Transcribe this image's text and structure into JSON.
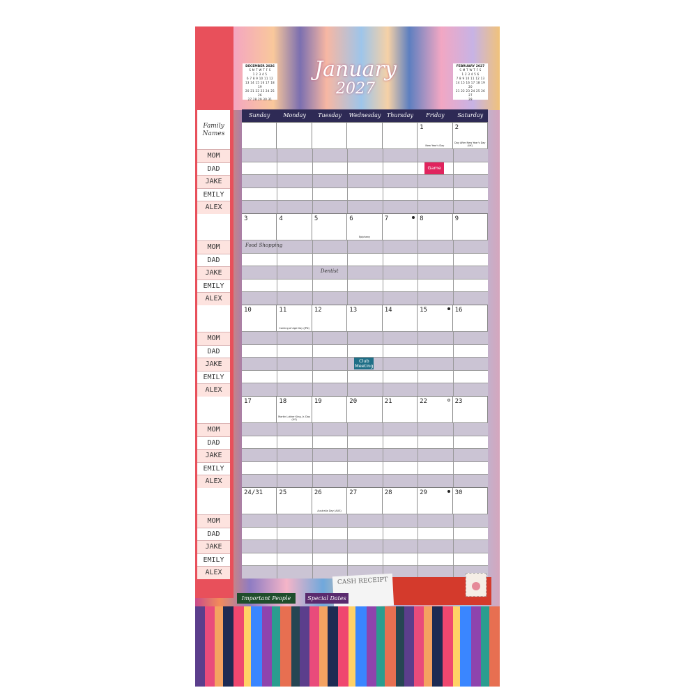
{
  "title": {
    "month": "January",
    "year": "2027"
  },
  "mini_calendars": [
    {
      "title": "DECEMBER 2026",
      "rows": [
        "S M T W T F S",
        "1 2 3 4 5",
        "6 7 8 9 10 11 12",
        "13 14 15 16 17 18 19",
        "20 21 22 23 24 25 26",
        "27 28 29 30 31"
      ]
    },
    {
      "title": "FEBRUARY 2027",
      "rows": [
        "S M T W T F S",
        "1 2 3 4 5 6",
        "7 8 9 10 11 12 13",
        "14 15 16 17 18 19 20",
        "21 22 23 24 25 26 27",
        "28"
      ]
    }
  ],
  "family": {
    "label": "Family Names",
    "members": [
      "MOM",
      "DAD",
      "JAKE",
      "EMILY",
      "ALEX"
    ]
  },
  "weekdays": [
    "Sunday",
    "Monday",
    "Tuesday",
    "Wednesday",
    "Thursday",
    "Friday",
    "Saturday"
  ],
  "weeks": [
    {
      "days": [
        "",
        "",
        "",
        "",
        "",
        "1",
        "2"
      ],
      "holidays": {
        "5": "New Year's Day",
        "6": "Day After New Year's Day (UK)"
      },
      "moons": {}
    },
    {
      "days": [
        "3",
        "4",
        "5",
        "6",
        "7",
        "8",
        "9"
      ],
      "holidays": {
        "3": "Epiphany"
      },
      "moons": {
        "4": "full"
      }
    },
    {
      "days": [
        "10",
        "11",
        "12",
        "13",
        "14",
        "15",
        "16"
      ],
      "holidays": {
        "1": "Coming of Age Day (JPN)"
      },
      "moons": {
        "5": "full"
      }
    },
    {
      "days": [
        "17",
        "18",
        "19",
        "20",
        "21",
        "22",
        "23"
      ],
      "holidays": {
        "1": "Martin Luther King, Jr. Day (US)"
      },
      "moons": {
        "5": "empty"
      }
    },
    {
      "days": [
        "24/31",
        "25",
        "26",
        "27",
        "28",
        "29",
        "30"
      ],
      "holidays": {
        "2": "Australia Day (AUS)"
      },
      "moons": {
        "5": "full"
      }
    }
  ],
  "events": [
    {
      "week": 0,
      "day": 5,
      "row": 1,
      "text": "Game",
      "style": "badge",
      "bg": "#e0245e"
    },
    {
      "week": 1,
      "day": 0,
      "row": 0,
      "text": "Food Shopping",
      "style": "hand"
    },
    {
      "week": 1,
      "day": 2,
      "row": 2,
      "text": "Dentist",
      "style": "hand"
    },
    {
      "week": 2,
      "day": 3,
      "row": 2,
      "text": "Club Meeting",
      "style": "badge",
      "bg": "#1f6f87"
    }
  ],
  "tabs": [
    {
      "label": "Important People",
      "bg": "#1e4d2b"
    },
    {
      "label": "Special Dates",
      "bg": "#5a2a6e"
    }
  ],
  "receipt": {
    "title": "CASH RECEIPT"
  }
}
